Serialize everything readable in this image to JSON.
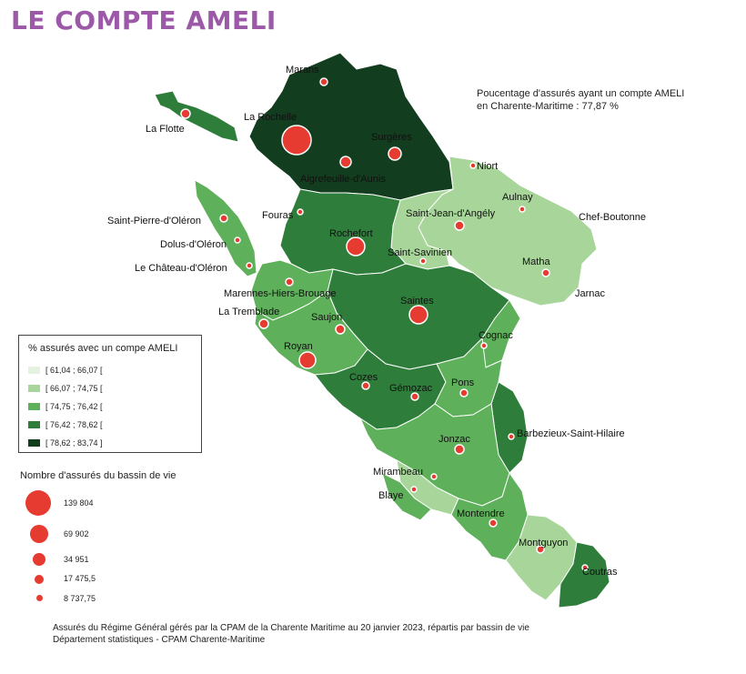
{
  "title": "LE COMPTE AMELI",
  "summary": {
    "line1": "Poucentage d'assurés ayant un compte AMELI",
    "line2": "en Charente-Maritime : 77,87 %"
  },
  "colors": {
    "class1": "#e6f2e1",
    "class2": "#a8d69a",
    "class3": "#5eb05a",
    "class4": "#2f7d3a",
    "class5": "#123d1e",
    "bubble": "#e63b30",
    "title": "#9b59a8"
  },
  "legend": {
    "title": "% assurés avec un compe AMELI",
    "classes": [
      {
        "label": "[ 61,04 ; 66,07 [",
        "color": "#e6f2e1"
      },
      {
        "label": "[ 66,07 ; 74,75 [",
        "color": "#a8d69a"
      },
      {
        "label": "[ 74,75 ; 76,42 [",
        "color": "#5eb05a"
      },
      {
        "label": "[ 76,42 ; 78,62 [",
        "color": "#2f7d3a"
      },
      {
        "label": "[ 78,62 ; 83,74 ]",
        "color": "#123d1e"
      }
    ]
  },
  "bubbles": {
    "title": "Nombre d'assurés du bassin de vie",
    "items": [
      {
        "value": 139804,
        "label": "139 804"
      },
      {
        "value": 69902,
        "label": "69 902"
      },
      {
        "value": 34951,
        "label": "34 951"
      },
      {
        "value": 17475.5,
        "label": "17 475,5"
      },
      {
        "value": 8737.75,
        "label": "8 737,75"
      }
    ]
  },
  "places": [
    "Marans",
    "La Rochelle",
    "La Flotte",
    "Surgères",
    "Aigrefeuille-d'Aunis",
    "Niort",
    "Aulnay",
    "Chef-Boutonne",
    "Saint-Jean-d'Angély",
    "Saint-Savinien",
    "Matha",
    "Jarnac",
    "Saint-Pierre-d'Oléron",
    "Dolus-d'Oléron",
    "Le Château-d'Oléron",
    "Fouras",
    "Rochefort",
    "Marennes-Hiers-Brouage",
    "La Tremblade",
    "Saujon",
    "Saintes",
    "Cognac",
    "Royan",
    "Cozes",
    "Gémozac",
    "Pons",
    "Barbezieux-Saint-Hilaire",
    "Jonzac",
    "Mirambeau",
    "Blaye",
    "Montendre",
    "Montguyon",
    "Coutras"
  ],
  "source": {
    "line1": "Assurés du Régime Général gérés par la CPAM de la Charente Maritime au 20 janvier 2023, répartis par bassin de vie",
    "line2": "Département statistiques - CPAM Charente-Maritime"
  }
}
